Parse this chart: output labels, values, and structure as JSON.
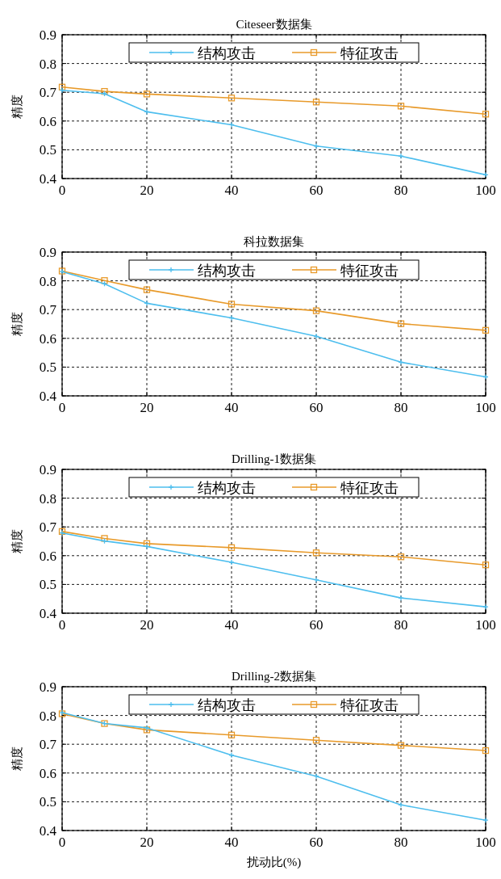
{
  "chart_data": [
    {
      "type": "line",
      "title": "Citeseer数据集",
      "ylabel": "精度",
      "x": [
        0,
        10,
        20,
        40,
        60,
        80,
        100
      ],
      "xlim": [
        0,
        100
      ],
      "ylim": [
        0.4,
        0.9
      ],
      "xticks": [
        0,
        20,
        40,
        60,
        80,
        100
      ],
      "yticks": [
        0.4,
        0.5,
        0.6,
        0.7,
        0.8,
        0.9
      ],
      "grid": true,
      "legend": "top",
      "series": [
        {
          "name": "结构攻击",
          "color": "#4dbeee",
          "marker": "cross",
          "values": [
            0.707,
            0.695,
            0.632,
            0.587,
            0.513,
            0.478,
            0.413
          ]
        },
        {
          "name": "特征攻击",
          "color": "#e89a2a",
          "marker": "square",
          "values": [
            0.718,
            0.703,
            0.694,
            0.68,
            0.666,
            0.652,
            0.624
          ]
        }
      ]
    },
    {
      "type": "line",
      "title": "科拉数据集",
      "ylabel": "精度",
      "x": [
        0,
        10,
        20,
        40,
        60,
        80,
        100
      ],
      "xlim": [
        0,
        100
      ],
      "ylim": [
        0.4,
        0.9
      ],
      "xticks": [
        0,
        20,
        40,
        60,
        80,
        100
      ],
      "yticks": [
        0.4,
        0.5,
        0.6,
        0.7,
        0.8,
        0.9
      ],
      "grid": true,
      "legend": "top",
      "series": [
        {
          "name": "结构攻击",
          "color": "#4dbeee",
          "marker": "cross",
          "values": [
            0.832,
            0.79,
            0.722,
            0.671,
            0.607,
            0.517,
            0.466
          ]
        },
        {
          "name": "特征攻击",
          "color": "#e89a2a",
          "marker": "square",
          "values": [
            0.834,
            0.801,
            0.769,
            0.719,
            0.696,
            0.651,
            0.628
          ]
        }
      ]
    },
    {
      "type": "line",
      "title": "Drilling-1数据集",
      "ylabel": "精度",
      "x": [
        0,
        10,
        20,
        40,
        60,
        80,
        100
      ],
      "xlim": [
        0,
        100
      ],
      "ylim": [
        0.4,
        0.9
      ],
      "xticks": [
        0,
        20,
        40,
        60,
        80,
        100
      ],
      "yticks": [
        0.4,
        0.5,
        0.6,
        0.7,
        0.8,
        0.9
      ],
      "grid": true,
      "legend": "top",
      "series": [
        {
          "name": "结构攻击",
          "color": "#4dbeee",
          "marker": "cross",
          "values": [
            0.679,
            0.651,
            0.632,
            0.577,
            0.516,
            0.453,
            0.422
          ]
        },
        {
          "name": "特征攻击",
          "color": "#e89a2a",
          "marker": "square",
          "values": [
            0.684,
            0.66,
            0.642,
            0.628,
            0.61,
            0.596,
            0.568
          ]
        }
      ]
    },
    {
      "type": "line",
      "title": "Drilling-2数据集",
      "ylabel": "精度",
      "xlabel": "扰动比(%)",
      "x": [
        0,
        10,
        20,
        40,
        60,
        80,
        100
      ],
      "xlim": [
        0,
        100
      ],
      "ylim": [
        0.4,
        0.9
      ],
      "xticks": [
        0,
        20,
        40,
        60,
        80,
        100
      ],
      "yticks": [
        0.4,
        0.5,
        0.6,
        0.7,
        0.8,
        0.9
      ],
      "grid": true,
      "legend": "top",
      "series": [
        {
          "name": "结构攻击",
          "color": "#4dbeee",
          "marker": "cross",
          "values": [
            0.81,
            0.772,
            0.757,
            0.662,
            0.589,
            0.489,
            0.436
          ]
        },
        {
          "name": "特征攻击",
          "color": "#e89a2a",
          "marker": "square",
          "values": [
            0.806,
            0.772,
            0.75,
            0.732,
            0.714,
            0.696,
            0.678
          ]
        }
      ]
    }
  ]
}
